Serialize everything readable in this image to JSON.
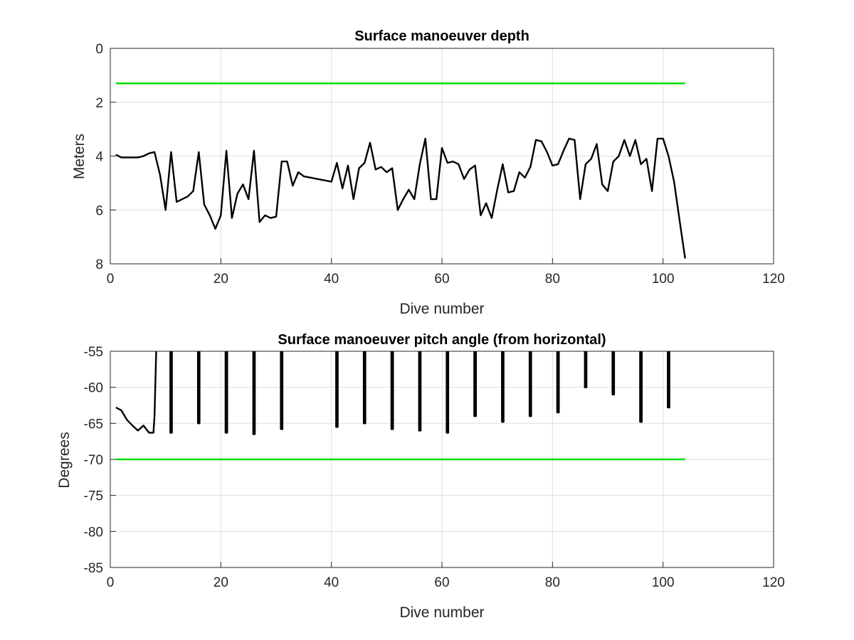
{
  "colors": {
    "data": "#000000",
    "limit": "#00dd00",
    "grid": "#dfdfdf",
    "axis": "#262626"
  },
  "chart_data": [
    {
      "type": "line",
      "title": "Surface manoeuver depth",
      "xlabel": "Dive number",
      "ylabel": "Meters",
      "xlim": [
        0,
        120
      ],
      "ylim": [
        0,
        8
      ],
      "y_reversed": true,
      "xticks": [
        0,
        20,
        40,
        60,
        80,
        100,
        120
      ],
      "yticks": [
        0,
        2,
        4,
        6,
        8
      ],
      "grid": true,
      "series": [
        {
          "points": [
            [
              1,
              3.95
            ],
            [
              2,
              4.05
            ],
            [
              3,
              4.05
            ],
            [
              4,
              4.05
            ],
            [
              5,
              4.05
            ],
            [
              6,
              4.0
            ],
            [
              7,
              3.9
            ],
            [
              8,
              3.85
            ],
            [
              9,
              4.7
            ],
            [
              10,
              6.0
            ],
            [
              11,
              3.85
            ],
            [
              12,
              5.7
            ],
            [
              13,
              5.6
            ],
            [
              14,
              5.5
            ],
            [
              15,
              5.3
            ],
            [
              16,
              3.85
            ],
            [
              17,
              5.8
            ],
            [
              18,
              6.2
            ],
            [
              19,
              6.7
            ],
            [
              20,
              6.2
            ],
            [
              21,
              3.8
            ],
            [
              22,
              6.3
            ],
            [
              23,
              5.4
            ],
            [
              24,
              5.05
            ],
            [
              25,
              5.6
            ],
            [
              26,
              3.8
            ],
            [
              27,
              6.45
            ],
            [
              28,
              6.2
            ],
            [
              29,
              6.3
            ],
            [
              30,
              6.25
            ],
            [
              31,
              4.2
            ],
            [
              32,
              4.2
            ],
            [
              33,
              5.1
            ],
            [
              34,
              4.6
            ],
            [
              35,
              4.75
            ],
            [
              40,
              4.95
            ],
            [
              41,
              4.25
            ],
            [
              42,
              5.2
            ],
            [
              43,
              4.35
            ],
            [
              44,
              5.6
            ],
            [
              45,
              4.45
            ],
            [
              46,
              4.25
            ],
            [
              47,
              3.5
            ],
            [
              48,
              4.5
            ],
            [
              49,
              4.4
            ],
            [
              50,
              4.6
            ],
            [
              51,
              4.45
            ],
            [
              52,
              6.0
            ],
            [
              53,
              5.6
            ],
            [
              54,
              5.25
            ],
            [
              55,
              5.6
            ],
            [
              56,
              4.3
            ],
            [
              57,
              3.35
            ],
            [
              58,
              5.6
            ],
            [
              59,
              5.6
            ],
            [
              60,
              3.7
            ],
            [
              61,
              4.25
            ],
            [
              62,
              4.2
            ],
            [
              63,
              4.3
            ],
            [
              64,
              4.85
            ],
            [
              65,
              4.5
            ],
            [
              66,
              4.35
            ],
            [
              67,
              6.2
            ],
            [
              68,
              5.75
            ],
            [
              69,
              6.3
            ],
            [
              70,
              5.25
            ],
            [
              71,
              4.3
            ],
            [
              72,
              5.35
            ],
            [
              73,
              5.3
            ],
            [
              74,
              4.6
            ],
            [
              75,
              4.8
            ],
            [
              76,
              4.4
            ],
            [
              77,
              3.4
            ],
            [
              78,
              3.45
            ],
            [
              79,
              3.85
            ],
            [
              80,
              4.35
            ],
            [
              81,
              4.3
            ],
            [
              82,
              3.8
            ],
            [
              83,
              3.35
            ],
            [
              84,
              3.4
            ],
            [
              85,
              5.6
            ],
            [
              86,
              4.3
            ],
            [
              87,
              4.1
            ],
            [
              88,
              3.55
            ],
            [
              89,
              5.05
            ],
            [
              90,
              5.3
            ],
            [
              91,
              4.2
            ],
            [
              92,
              4.0
            ],
            [
              93,
              3.4
            ],
            [
              94,
              4.0
            ],
            [
              95,
              3.4
            ],
            [
              96,
              4.3
            ],
            [
              97,
              4.1
            ],
            [
              98,
              5.3
            ],
            [
              99,
              3.35
            ],
            [
              100,
              3.35
            ],
            [
              101,
              4.0
            ],
            [
              102,
              4.95
            ],
            [
              103,
              6.4
            ],
            [
              104,
              7.8
            ]
          ]
        }
      ],
      "reference_line": {
        "y": 1.3,
        "x": [
          1,
          104
        ]
      }
    },
    {
      "type": "line",
      "title": "Surface manoeuver pitch angle (from horizontal)",
      "xlabel": "Dive number",
      "ylabel": "Degrees",
      "xlim": [
        0,
        120
      ],
      "ylim": [
        -85,
        -55
      ],
      "xticks": [
        0,
        20,
        40,
        60,
        80,
        100,
        120
      ],
      "yticks": [
        -55,
        -60,
        -65,
        -70,
        -75,
        -80,
        -85
      ],
      "grid": true,
      "series": [
        {
          "points": [
            [
              1,
              -62.8
            ],
            [
              2,
              -63.2
            ],
            [
              3,
              -64.5
            ],
            [
              4,
              -65.3
            ],
            [
              5,
              -66.0
            ],
            [
              6,
              -65.3
            ],
            [
              7,
              -66.3
            ],
            [
              7.8,
              -66.3
            ],
            [
              8,
              -64.0
            ],
            [
              8.3,
              -55
            ]
          ]
        }
      ],
      "spikes": [
        {
          "x": 11,
          "min": -66.3
        },
        {
          "x": 16,
          "min": -65.0
        },
        {
          "x": 21,
          "min": -66.3
        },
        {
          "x": 26,
          "min": -66.5
        },
        {
          "x": 31,
          "min": -65.8
        },
        {
          "x": 41,
          "min": -65.5
        },
        {
          "x": 46,
          "min": -65.0
        },
        {
          "x": 51,
          "min": -65.8
        },
        {
          "x": 56,
          "min": -66.0
        },
        {
          "x": 61,
          "min": -66.3
        },
        {
          "x": 66,
          "min": -64.0
        },
        {
          "x": 71,
          "min": -64.8
        },
        {
          "x": 76,
          "min": -64.0
        },
        {
          "x": 81,
          "min": -63.5
        },
        {
          "x": 86,
          "min": -60.0
        },
        {
          "x": 91,
          "min": -61.0
        },
        {
          "x": 96,
          "min": -64.8
        },
        {
          "x": 101,
          "min": -62.8
        }
      ],
      "reference_line": {
        "y": -70,
        "x": [
          1,
          104
        ]
      }
    }
  ]
}
